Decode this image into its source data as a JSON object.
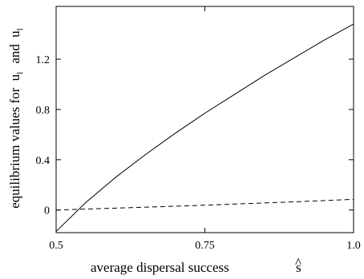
{
  "chart_data": {
    "type": "line",
    "xlabel": "average dispersal success",
    "xlabel_symbol": "s",
    "xlabel_hat": "^",
    "ylabel_part1": "equilibrium values for",
    "ylabel_sym1": "u",
    "ylabel_sub1": "l",
    "ylabel_and": "and",
    "ylabel_sym2": "u",
    "ylabel_sub2": "l",
    "xlim": [
      0.5,
      1.0
    ],
    "ylim": [
      -0.18,
      1.62
    ],
    "x_ticks": [
      {
        "value": 0.5,
        "label": "0.5"
      },
      {
        "value": 0.75,
        "label": "0.75"
      },
      {
        "value": 1.0,
        "label": "1.0"
      }
    ],
    "y_ticks": [
      {
        "value": 0,
        "label": "0"
      },
      {
        "value": 0.4,
        "label": "0.4"
      },
      {
        "value": 0.8,
        "label": "0.8"
      },
      {
        "value": 1.2,
        "label": "1.2"
      }
    ],
    "series": [
      {
        "style": "solid",
        "x": [
          0.5,
          0.55,
          0.6,
          0.65,
          0.7,
          0.75,
          0.8,
          0.85,
          0.9,
          0.95,
          1.0
        ],
        "y": [
          -0.17,
          0.06,
          0.26,
          0.44,
          0.61,
          0.77,
          0.92,
          1.07,
          1.21,
          1.35,
          1.48
        ]
      },
      {
        "style": "dashed",
        "x": [
          0.5,
          0.6,
          0.7,
          0.8,
          0.9,
          1.0
        ],
        "y": [
          0.0,
          0.015,
          0.03,
          0.047,
          0.065,
          0.085
        ]
      }
    ]
  }
}
